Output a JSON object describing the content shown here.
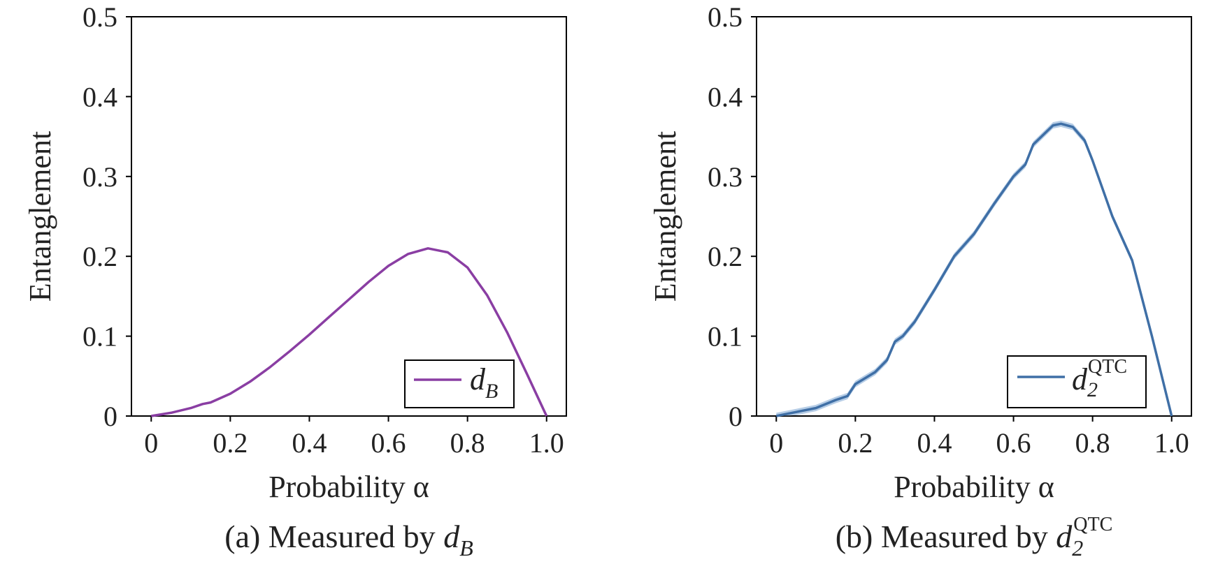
{
  "colors": {
    "purple": "#8a3ea3",
    "blue": "#3f6fa6",
    "band": "#a9c4e2",
    "axis": "#000000"
  },
  "panels": [
    {
      "caption_prefix": "(a) Measured by ",
      "caption_sym": "d",
      "caption_sub": "B",
      "caption_sup": ""
    },
    {
      "caption_prefix": "(b) Measured by ",
      "caption_sym": "d",
      "caption_sub": "2",
      "caption_sup": "QTC"
    }
  ],
  "chart_data": [
    {
      "type": "line",
      "xlabel": "Probability α",
      "ylabel": "Entanglement",
      "xlim": [
        -0.05,
        1.05
      ],
      "ylim": [
        0,
        0.5
      ],
      "xticks": [
        "0",
        "0.2",
        "0.4",
        "0.6",
        "0.8",
        "1.0"
      ],
      "xtick_values": [
        0,
        0.2,
        0.4,
        0.6,
        0.8,
        1.0
      ],
      "yticks": [
        "0",
        "0.1",
        "0.2",
        "0.3",
        "0.4",
        "0.5"
      ],
      "ytick_values": [
        0,
        0.1,
        0.2,
        0.3,
        0.4,
        0.5
      ],
      "legend_position": "lower-right",
      "series": [
        {
          "name": "d_B",
          "legend_sym": "d",
          "legend_sub": "B",
          "legend_sup": "",
          "color": "#8a3ea3",
          "x": [
            0,
            0.05,
            0.1,
            0.13,
            0.15,
            0.2,
            0.25,
            0.3,
            0.35,
            0.4,
            0.45,
            0.5,
            0.55,
            0.6,
            0.65,
            0.7,
            0.75,
            0.8,
            0.85,
            0.9,
            0.95,
            1.0
          ],
          "y": [
            0,
            0.004,
            0.01,
            0.015,
            0.017,
            0.028,
            0.043,
            0.061,
            0.081,
            0.102,
            0.124,
            0.146,
            0.168,
            0.188,
            0.203,
            0.21,
            0.205,
            0.186,
            0.151,
            0.105,
            0.053,
            0.0
          ]
        }
      ]
    },
    {
      "type": "line",
      "xlabel": "Probability α",
      "ylabel": "Entanglement",
      "xlim": [
        -0.05,
        1.05
      ],
      "ylim": [
        0,
        0.5
      ],
      "xticks": [
        "0",
        "0.2",
        "0.4",
        "0.6",
        "0.8",
        "1.0"
      ],
      "xtick_values": [
        0,
        0.2,
        0.4,
        0.6,
        0.8,
        1.0
      ],
      "yticks": [
        "0",
        "0.1",
        "0.2",
        "0.3",
        "0.4",
        "0.5"
      ],
      "ytick_values": [
        0,
        0.1,
        0.2,
        0.3,
        0.4,
        0.5
      ],
      "legend_position": "lower-right",
      "series": [
        {
          "name": "d_2^QTC",
          "legend_sym": "d",
          "legend_sub": "2",
          "legend_sup": "QTC",
          "color": "#3f6fa6",
          "band_color": "#a9c4e2",
          "band_width": 0.004,
          "x": [
            0,
            0.05,
            0.1,
            0.15,
            0.18,
            0.2,
            0.25,
            0.28,
            0.3,
            0.32,
            0.35,
            0.4,
            0.45,
            0.5,
            0.55,
            0.6,
            0.63,
            0.65,
            0.7,
            0.72,
            0.75,
            0.78,
            0.8,
            0.85,
            0.9,
            0.95,
            1.0
          ],
          "y": [
            0,
            0.005,
            0.01,
            0.02,
            0.025,
            0.04,
            0.055,
            0.07,
            0.093,
            0.1,
            0.118,
            0.158,
            0.2,
            0.228,
            0.265,
            0.3,
            0.315,
            0.34,
            0.364,
            0.366,
            0.362,
            0.345,
            0.32,
            0.25,
            0.195,
            0.1,
            0.0
          ]
        }
      ]
    }
  ]
}
